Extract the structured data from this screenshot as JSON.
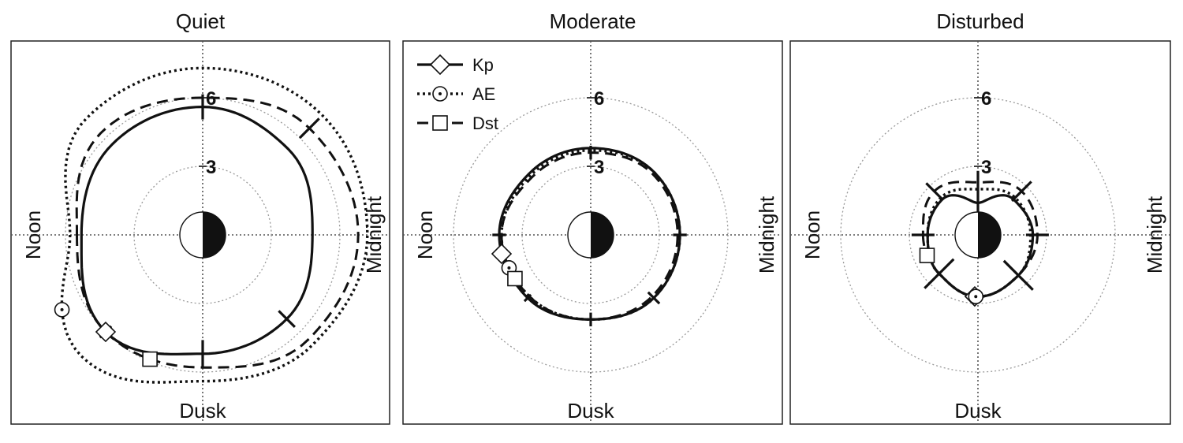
{
  "chart_data": [
    {
      "type": "polar",
      "title": "Quiet",
      "direction_labels": {
        "left": "Noon",
        "right": "Midnight",
        "bottom": "Dusk"
      },
      "radial_ticks": [
        3,
        6
      ],
      "series": [
        {
          "name": "Kp",
          "radius_by_angle_deg": {
            "0": 5.3,
            "45": 6.0,
            "90": 5.2,
            "135": 5.2,
            "180": 4.8,
            "225": 5.3,
            "270": 5.6,
            "315": 5.6
          },
          "bars": [
            {
              "angle_deg": 45,
              "half_len": 0.35
            },
            {
              "angle_deg": 90,
              "half_len": 0.6
            },
            {
              "angle_deg": 135,
              "half_len": 0.5
            },
            {
              "angle_deg": 270,
              "half_len": 0.55
            }
          ],
          "marker_angle_deg": 45
        },
        {
          "name": "AE",
          "radius_by_angle_deg": {
            "0": 5.8,
            "45": 7.5,
            "90": 6.4,
            "135": 6.8,
            "180": 7.2,
            "225": 7.4,
            "270": 7.3,
            "315": 7.2
          },
          "marker_angle_deg": 28
        },
        {
          "name": "Dst",
          "radius_by_angle_deg": {
            "0": 5.5,
            "45": 6.0,
            "90": 5.8,
            "135": 6.5,
            "180": 6.8,
            "225": 6.6,
            "270": 6.0,
            "315": 6.3
          },
          "bars": [
            {
              "angle_deg": 225,
              "half_len": 0.6
            }
          ],
          "marker_angle_deg": 67
        }
      ]
    },
    {
      "type": "polar",
      "title": "Moderate",
      "direction_labels": {
        "left": "Noon",
        "right": "Midnight",
        "bottom": "Dusk"
      },
      "radial_ticks": [
        3,
        6
      ],
      "legend": [
        "Kp",
        "AE",
        "Dst"
      ],
      "series": [
        {
          "name": "Kp",
          "radius_by_angle_deg": {
            "0": 4.0,
            "45": 3.9,
            "90": 3.7,
            "135": 3.9,
            "180": 3.9,
            "225": 3.9,
            "270": 3.8,
            "315": 3.8
          },
          "bars": [
            {
              "angle_deg": 0,
              "half_len": 0.3
            },
            {
              "angle_deg": 45,
              "half_len": 0.2
            },
            {
              "angle_deg": 90,
              "half_len": 0.3
            },
            {
              "angle_deg": 135,
              "half_len": 0.35
            },
            {
              "angle_deg": 180,
              "half_len": 0.3
            }
          ],
          "marker_angle_deg": 12
        },
        {
          "name": "AE",
          "radius_by_angle_deg": {
            "0": 3.9,
            "45": 3.8,
            "90": 3.7,
            "135": 3.9,
            "180": 3.9,
            "225": 3.9,
            "270": 3.7,
            "315": 3.7
          },
          "marker_angle_deg": 22
        },
        {
          "name": "Dst",
          "radius_by_angle_deg": {
            "0": 3.9,
            "45": 3.8,
            "90": 3.7,
            "135": 3.8,
            "180": 3.8,
            "225": 3.8,
            "270": 3.6,
            "315": 3.6
          },
          "bars": [
            {
              "angle_deg": 270,
              "half_len": 0.3
            }
          ],
          "marker_angle_deg": 30
        }
      ]
    },
    {
      "type": "polar",
      "title": "Disturbed",
      "direction_labels": {
        "left": "Noon",
        "right": "Midnight",
        "bottom": "Dusk"
      },
      "radial_ticks": [
        3,
        6
      ],
      "series": [
        {
          "name": "Kp",
          "radius_by_angle_deg": {
            "0": 2.2,
            "45": 2.4,
            "90": 2.7,
            "135": 2.5,
            "180": 2.4,
            "225": 2.2,
            "270": 1.4,
            "315": 2.2
          },
          "bars": [
            {
              "angle_deg": 45,
              "half_len": 0.9
            },
            {
              "angle_deg": 135,
              "half_len": 0.9
            },
            {
              "angle_deg": 270,
              "half_len": 1.4
            }
          ],
          "marker_angle_deg": 87
        },
        {
          "name": "AE",
          "radius_by_angle_deg": {
            "0": 2.2,
            "45": 2.4,
            "90": 2.7,
            "135": 2.5,
            "180": 2.3,
            "225": 2.3,
            "270": 2.0,
            "315": 2.3
          },
          "marker_angle_deg": 88
        },
        {
          "name": "Dst",
          "radius_by_angle_deg": {
            "0": 2.4,
            "45": 2.4,
            "90": 2.7,
            "135": 2.5,
            "180": 2.6,
            "225": 2.7,
            "270": 2.3,
            "315": 2.7
          },
          "bars": [
            {
              "angle_deg": 0,
              "half_len": 0.5
            },
            {
              "angle_deg": 180,
              "half_len": 0.5
            },
            {
              "angle_deg": 225,
              "half_len": 0.6
            },
            {
              "angle_deg": 315,
              "half_len": 0.5
            }
          ],
          "marker_angle_deg": 22
        }
      ]
    }
  ]
}
